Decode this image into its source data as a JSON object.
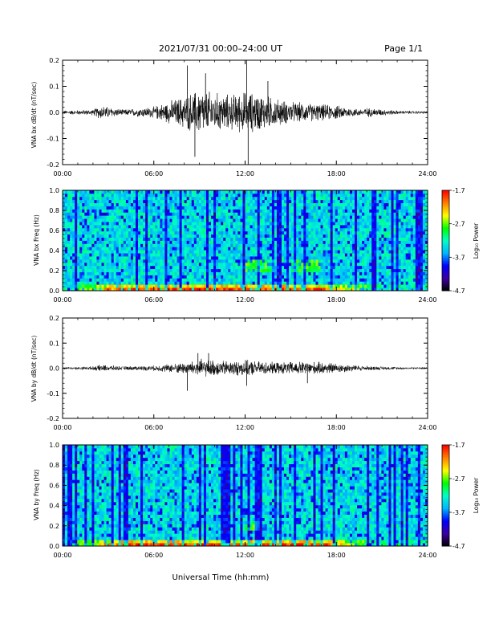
{
  "header": {
    "title": "2021/07/31  00:00–24:00 UT",
    "page": "Page 1/1"
  },
  "xlabel": "Universal Time (hh:mm)",
  "colorbar_label": "Log₁₀ Power",
  "chart_data": [
    {
      "type": "line",
      "ylabel": "VNA bx dB/dt (nT/sec)",
      "xlim": [
        0,
        24
      ],
      "ylim": [
        -0.2,
        0.2
      ],
      "x_ticks": [
        "00:00",
        "06:00",
        "12:00",
        "18:00",
        "24:00"
      ],
      "y_ticks": [
        "-0.2",
        "-0.1",
        "0.0",
        "0.1",
        "0.2"
      ],
      "grid": false,
      "envelope": {
        "hours": [
          0,
          2,
          2.5,
          4,
          6,
          8,
          9,
          10,
          11,
          12,
          13,
          14,
          15,
          16,
          18,
          19.5,
          20,
          22,
          24
        ],
        "amplitude": [
          0.008,
          0.012,
          0.03,
          0.012,
          0.025,
          0.07,
          0.1,
          0.085,
          0.075,
          0.09,
          0.08,
          0.06,
          0.045,
          0.04,
          0.03,
          0.015,
          0.02,
          0.008,
          0.006
        ]
      },
      "spikes": [
        {
          "hour": 8.2,
          "value": 0.18
        },
        {
          "hour": 8.7,
          "value": -0.17
        },
        {
          "hour": 9.4,
          "value": 0.15
        },
        {
          "hour": 12.1,
          "value": 0.2
        },
        {
          "hour": 12.2,
          "value": -0.2
        },
        {
          "hour": 13.5,
          "value": 0.12
        }
      ]
    },
    {
      "type": "heatmap",
      "ylabel": "VNA bx Freq (Hz)",
      "xlim": [
        0,
        24
      ],
      "ylim": [
        0,
        1
      ],
      "x_ticks": [
        "00:00",
        "06:00",
        "12:00",
        "18:00",
        "24:00"
      ],
      "y_ticks": [
        "0.0",
        "0.2",
        "0.4",
        "0.6",
        "0.8",
        "1.0"
      ],
      "colorbar": {
        "min": -4.7,
        "max": -1.7,
        "ticks": [
          "-1.7",
          "-2.7",
          "-3.7",
          "-4.7"
        ],
        "colors": [
          "#000000",
          "#3c00a0",
          "#0000ff",
          "#00b4ff",
          "#00ffc8",
          "#00ff00",
          "#ffff00",
          "#ff8000",
          "#ff0000"
        ]
      },
      "features": [
        {
          "type": "low-frequency band",
          "hours": [
            1,
            20
          ],
          "freq_max": 0.05
        },
        {
          "type": "patch",
          "hours": [
            12,
            14
          ],
          "freq": 0.25
        },
        {
          "type": "patch",
          "hours": [
            15,
            17
          ],
          "freq": 0.25
        }
      ]
    },
    {
      "type": "line",
      "ylabel": "VNA by dB/dt (nT/sec)",
      "xlim": [
        0,
        24
      ],
      "ylim": [
        -0.2,
        0.2
      ],
      "x_ticks": [
        "00:00",
        "06:00",
        "12:00",
        "18:00",
        "24:00"
      ],
      "y_ticks": [
        "-0.2",
        "-0.1",
        "0.0",
        "0.1",
        "0.2"
      ],
      "grid": false,
      "envelope": {
        "hours": [
          0,
          2,
          2.5,
          4,
          6,
          7.5,
          8.5,
          9,
          10,
          11,
          12,
          13,
          14,
          15,
          16,
          17.5,
          19,
          20,
          22,
          24
        ],
        "amplitude": [
          0.005,
          0.008,
          0.015,
          0.008,
          0.012,
          0.022,
          0.03,
          0.04,
          0.035,
          0.032,
          0.035,
          0.03,
          0.025,
          0.028,
          0.03,
          0.025,
          0.015,
          0.01,
          0.006,
          0.005
        ]
      },
      "spikes": [
        {
          "hour": 8.2,
          "value": -0.09
        },
        {
          "hour": 8.9,
          "value": 0.06
        },
        {
          "hour": 9.6,
          "value": 0.06
        },
        {
          "hour": 12.1,
          "value": -0.07
        },
        {
          "hour": 16.1,
          "value": -0.06
        }
      ]
    },
    {
      "type": "heatmap",
      "ylabel": "VNA by Freq (Hz)",
      "xlim": [
        0,
        24
      ],
      "ylim": [
        0,
        1
      ],
      "x_ticks": [
        "00:00",
        "06:00",
        "12:00",
        "18:00",
        "24:00"
      ],
      "y_ticks": [
        "0.0",
        "0.2",
        "0.4",
        "0.6",
        "0.8",
        "1.0"
      ],
      "colorbar": {
        "min": -4.7,
        "max": -1.7,
        "ticks": [
          "-1.7",
          "-2.7",
          "-3.7",
          "-4.7"
        ],
        "colors": [
          "#000000",
          "#3c00a0",
          "#0000ff",
          "#00b4ff",
          "#00ffc8",
          "#00ff00",
          "#ffff00",
          "#ff8000",
          "#ff0000"
        ]
      },
      "features": [
        {
          "type": "low-frequency band",
          "hours": [
            1,
            20
          ],
          "freq_max": 0.05
        },
        {
          "type": "patch",
          "hours": [
            12,
            13
          ],
          "freq": 0.2
        }
      ]
    }
  ]
}
